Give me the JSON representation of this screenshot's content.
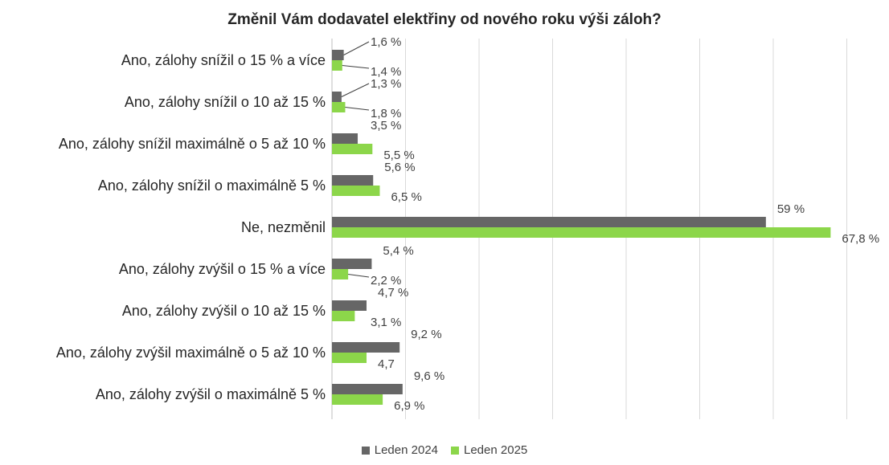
{
  "chart_data": {
    "type": "bar",
    "orientation": "horizontal",
    "title": "Změnil Vám dodavatel elektřiny od nového roku výši záloh?",
    "categories": [
      "Ano, zálohy snížil o 15 % a více",
      "Ano, zálohy snížil o 10 až 15 %",
      "Ano, zálohy snížil maximálně o 5 až 10 %",
      "Ano, zálohy snížil o maximálně 5 %",
      "Ne, nezměnil",
      "Ano, zálohy zvýšil o 15 % a více",
      "Ano, zálohy zvýšil o 10 až 15 %",
      "Ano, zálohy zvýšil maximálně o 5 až 10 %",
      "Ano, zálohy zvýšil o maximálně 5 %"
    ],
    "series": [
      {
        "name": "Leden 2024",
        "color": "#666666",
        "values": [
          1.6,
          1.3,
          3.5,
          5.6,
          59,
          5.4,
          4.7,
          9.2,
          9.6
        ],
        "labels": [
          "1,6 %",
          "1,3 %",
          "3,5 %",
          "5,6 %",
          "59 %",
          "5,4 %",
          "4,7 %",
          "9,2 %",
          "9,6 %"
        ]
      },
      {
        "name": "Leden 2025",
        "color": "#8cd64a",
        "values": [
          1.4,
          1.8,
          5.5,
          6.5,
          67.8,
          2.2,
          3.1,
          4.7,
          6.9
        ],
        "labels": [
          "1,4 %",
          "1,8 %",
          "5,5 %",
          "6,5 %",
          "67,8 %",
          "2,2 %",
          "3,1 %",
          "4,7",
          "6,9 %"
        ]
      }
    ],
    "xlim": [
      0,
      70
    ],
    "x_gridline_step": 10,
    "grid": true,
    "legend_position": "bottom-center"
  }
}
